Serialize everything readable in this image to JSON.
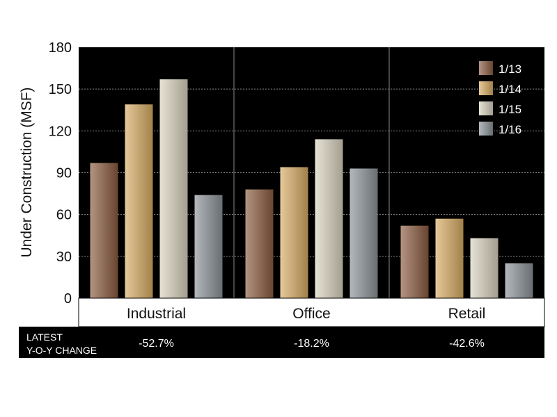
{
  "chart_data": {
    "type": "bar",
    "ylabel": "Under Construction (MSF)",
    "ylim": [
      0,
      180
    ],
    "yticks": [
      0,
      30,
      60,
      90,
      120,
      150,
      180
    ],
    "grid": true,
    "legend_position": "top-right",
    "categories": [
      "Industrial",
      "Office",
      "Retail"
    ],
    "series": [
      {
        "name": "1/13",
        "color": "#8a5a3e",
        "values": [
          97,
          78,
          52
        ]
      },
      {
        "name": "1/14",
        "color": "#d8ac63",
        "values": [
          139,
          94,
          57
        ]
      },
      {
        "name": "1/15",
        "color": "#d9d2bf",
        "values": [
          157,
          114,
          43
        ]
      },
      {
        "name": "1/16",
        "color": "#8b9298",
        "values": [
          74,
          93,
          25
        ]
      }
    ],
    "footer": {
      "title_line1": "LATEST",
      "title_line2": "Y-O-Y CHANGE",
      "values": [
        "-52.7%",
        "-18.2%",
        "-42.6%"
      ]
    }
  }
}
